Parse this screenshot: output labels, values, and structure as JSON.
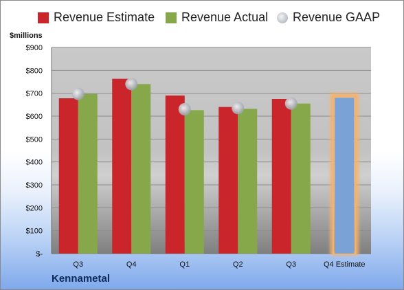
{
  "legend": {
    "estimate": "Revenue Estimate",
    "actual": "Revenue Actual",
    "gaap": "Revenue GAAP"
  },
  "unit_label": "$millions",
  "company": "Kennametal",
  "colors": {
    "estimate": "#c9252b",
    "actual": "#86a84a",
    "gaap": "#c2c6cd",
    "forecast": "#7ba2d6",
    "forecast_glow": "#f6b26b"
  },
  "chart_data": {
    "type": "bar",
    "categories": [
      "Q3",
      "Q4",
      "Q1",
      "Q2",
      "Q3",
      "Q4 Estimate"
    ],
    "series": [
      {
        "name": "Revenue Estimate",
        "values": [
          678,
          763,
          690,
          640,
          675,
          null
        ]
      },
      {
        "name": "Revenue Actual",
        "values": [
          697,
          740,
          626,
          632,
          655,
          680
        ]
      },
      {
        "name": "Revenue GAAP",
        "values": [
          697,
          740,
          630,
          635,
          655,
          null
        ]
      }
    ],
    "ylim": [
      0,
      900
    ],
    "yticks": [
      0,
      100,
      200,
      300,
      400,
      500,
      600,
      700,
      800,
      900
    ],
    "ytick_labels": [
      "$-",
      "$100",
      "$200",
      "$300",
      "$400",
      "$500",
      "$600",
      "$700",
      "$800",
      "$900"
    ],
    "ylabel": "$millions",
    "grid": true,
    "legend_position": "top"
  }
}
